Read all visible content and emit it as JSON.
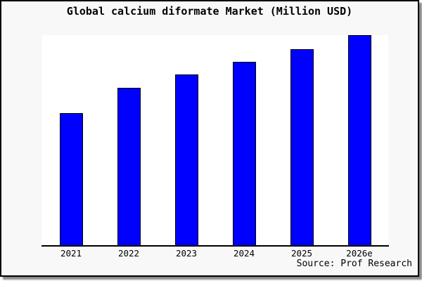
{
  "chart_data": {
    "type": "bar",
    "title": "Global calcium diformate Market (Million USD)",
    "categories": [
      "2021",
      "2022",
      "2023",
      "2024",
      "2025",
      "2026e"
    ],
    "values": [
      63,
      75,
      81.3,
      87.3,
      93.3,
      100
    ],
    "values_note": "relative bar heights in % of plot maximum; chart displays no y-axis scale or gridlines",
    "xlabel": "",
    "ylabel": "",
    "ylim": [
      0,
      100
    ],
    "grid": false,
    "legend": false,
    "y_axis_visible": false,
    "source_label": "Source: Prof Research"
  },
  "colors": {
    "bar_fill": "#0000ff",
    "bar_border": "#000000",
    "card_background": "#f8f8f8",
    "plot_background": "#ffffff",
    "frame_border": "#000000",
    "shadow": "#8a8a8a",
    "text": "#000000"
  }
}
